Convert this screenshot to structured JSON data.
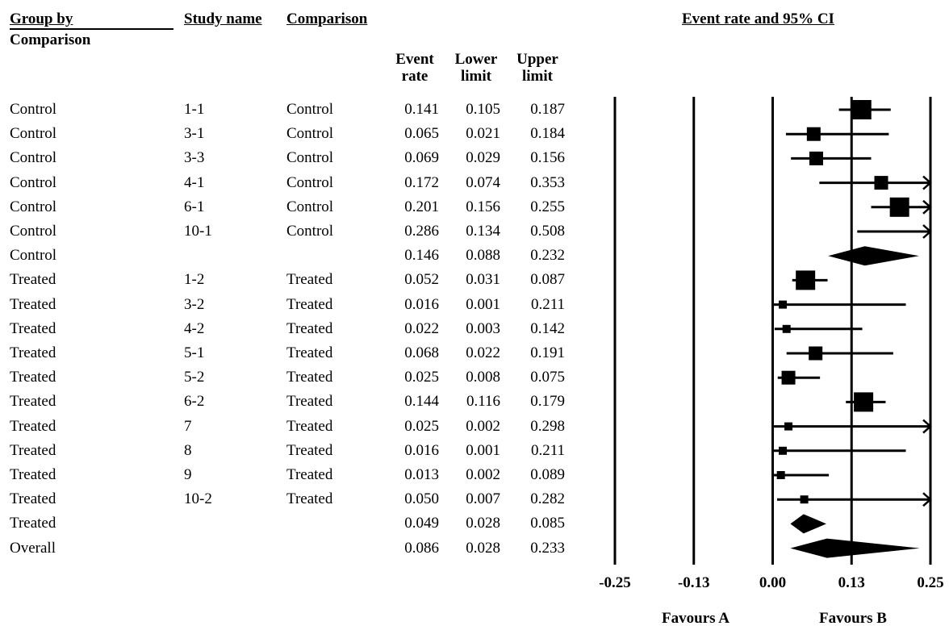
{
  "headers": {
    "group_by": "Group by",
    "group_by_line2": "Comparison",
    "study_name": "Study name",
    "comparison": "Comparison",
    "event_rate": [
      "Event",
      "rate"
    ],
    "lower_limit": [
      "Lower",
      "limit"
    ],
    "upper_limit": [
      "Upper",
      "limit"
    ],
    "plot_title": "Event rate and 95% CI"
  },
  "rows": [
    {
      "group": "Control",
      "study": "1-1",
      "comparison": "Control",
      "er": "0.141",
      "lo": "0.105",
      "hi": "0.187"
    },
    {
      "group": "Control",
      "study": "3-1",
      "comparison": "Control",
      "er": "0.065",
      "lo": "0.021",
      "hi": "0.184"
    },
    {
      "group": "Control",
      "study": "3-3",
      "comparison": "Control",
      "er": "0.069",
      "lo": "0.029",
      "hi": "0.156"
    },
    {
      "group": "Control",
      "study": "4-1",
      "comparison": "Control",
      "er": "0.172",
      "lo": "0.074",
      "hi": "0.353"
    },
    {
      "group": "Control",
      "study": "6-1",
      "comparison": "Control",
      "er": "0.201",
      "lo": "0.156",
      "hi": "0.255"
    },
    {
      "group": "Control",
      "study": "10-1",
      "comparison": "Control",
      "er": "0.286",
      "lo": "0.134",
      "hi": "0.508"
    },
    {
      "group": "Control",
      "study": "",
      "comparison": "",
      "er": "0.146",
      "lo": "0.088",
      "hi": "0.232"
    },
    {
      "group": "Treated",
      "study": "1-2",
      "comparison": "Treated",
      "er": "0.052",
      "lo": "0.031",
      "hi": "0.087"
    },
    {
      "group": "Treated",
      "study": "3-2",
      "comparison": "Treated",
      "er": "0.016",
      "lo": "0.001",
      "hi": "0.211"
    },
    {
      "group": "Treated",
      "study": "4-2",
      "comparison": "Treated",
      "er": "0.022",
      "lo": "0.003",
      "hi": "0.142"
    },
    {
      "group": "Treated",
      "study": "5-1",
      "comparison": "Treated",
      "er": "0.068",
      "lo": "0.022",
      "hi": "0.191"
    },
    {
      "group": "Treated",
      "study": "5-2",
      "comparison": "Treated",
      "er": "0.025",
      "lo": "0.008",
      "hi": "0.075"
    },
    {
      "group": "Treated",
      "study": "6-2",
      "comparison": "Treated",
      "er": "0.144",
      "lo": "0.116",
      "hi": "0.179"
    },
    {
      "group": "Treated",
      "study": "7",
      "comparison": "Treated",
      "er": "0.025",
      "lo": "0.002",
      "hi": "0.298"
    },
    {
      "group": "Treated",
      "study": "8",
      "comparison": "Treated",
      "er": "0.016",
      "lo": "0.001",
      "hi": "0.211"
    },
    {
      "group": "Treated",
      "study": "9",
      "comparison": "Treated",
      "er": "0.013",
      "lo": "0.002",
      "hi": "0.089"
    },
    {
      "group": "Treated",
      "study": "10-2",
      "comparison": "Treated",
      "er": "0.050",
      "lo": "0.007",
      "hi": "0.282"
    },
    {
      "group": "Treated",
      "study": "",
      "comparison": "",
      "er": "0.049",
      "lo": "0.028",
      "hi": "0.085"
    },
    {
      "group": "Overall",
      "study": "",
      "comparison": "",
      "er": "0.086",
      "lo": "0.028",
      "hi": "0.233"
    }
  ],
  "chart_data": {
    "type": "forest",
    "title": "Event rate and 95% CI",
    "xlim": [
      -0.25,
      0.25
    ],
    "ticks": [
      "-0.25",
      "-0.13",
      "0.00",
      "0.13",
      "0.25"
    ],
    "tick_values": [
      -0.25,
      -0.125,
      0,
      0.125,
      0.25
    ],
    "favours_left": "Favours A",
    "favours_right": "Favours B",
    "points": [
      {
        "label": "1-1",
        "er": 0.141,
        "lo": 0.105,
        "hi": 0.187,
        "weight": 3,
        "summary": false
      },
      {
        "label": "3-1",
        "er": 0.065,
        "lo": 0.021,
        "hi": 0.184,
        "weight": 2,
        "summary": false
      },
      {
        "label": "3-3",
        "er": 0.069,
        "lo": 0.029,
        "hi": 0.156,
        "weight": 2,
        "summary": false
      },
      {
        "label": "4-1",
        "er": 0.172,
        "lo": 0.074,
        "hi": 0.353,
        "weight": 2,
        "summary": false
      },
      {
        "label": "6-1",
        "er": 0.201,
        "lo": 0.156,
        "hi": 0.255,
        "weight": 3,
        "summary": false
      },
      {
        "label": "10-1",
        "er": 0.286,
        "lo": 0.134,
        "hi": 0.508,
        "weight": 1,
        "summary": false
      },
      {
        "label": "Control",
        "er": 0.146,
        "lo": 0.088,
        "hi": 0.232,
        "weight": 0,
        "summary": true
      },
      {
        "label": "1-2",
        "er": 0.052,
        "lo": 0.031,
        "hi": 0.087,
        "weight": 3,
        "summary": false
      },
      {
        "label": "3-2",
        "er": 0.016,
        "lo": 0.001,
        "hi": 0.211,
        "weight": 1,
        "summary": false
      },
      {
        "label": "4-2",
        "er": 0.022,
        "lo": 0.003,
        "hi": 0.142,
        "weight": 1,
        "summary": false
      },
      {
        "label": "5-1",
        "er": 0.068,
        "lo": 0.022,
        "hi": 0.191,
        "weight": 2,
        "summary": false
      },
      {
        "label": "5-2",
        "er": 0.025,
        "lo": 0.008,
        "hi": 0.075,
        "weight": 2,
        "summary": false
      },
      {
        "label": "6-2",
        "er": 0.144,
        "lo": 0.116,
        "hi": 0.179,
        "weight": 3,
        "summary": false
      },
      {
        "label": "7",
        "er": 0.025,
        "lo": 0.002,
        "hi": 0.298,
        "weight": 1,
        "summary": false
      },
      {
        "label": "8",
        "er": 0.016,
        "lo": 0.001,
        "hi": 0.211,
        "weight": 1,
        "summary": false
      },
      {
        "label": "9",
        "er": 0.013,
        "lo": 0.002,
        "hi": 0.089,
        "weight": 1,
        "summary": false
      },
      {
        "label": "10-2",
        "er": 0.05,
        "lo": 0.007,
        "hi": 0.282,
        "weight": 1,
        "summary": false
      },
      {
        "label": "Treated",
        "er": 0.049,
        "lo": 0.028,
        "hi": 0.085,
        "weight": 0,
        "summary": true
      },
      {
        "label": "Overall",
        "er": 0.086,
        "lo": 0.028,
        "hi": 0.233,
        "weight": 0,
        "summary": true
      }
    ]
  }
}
